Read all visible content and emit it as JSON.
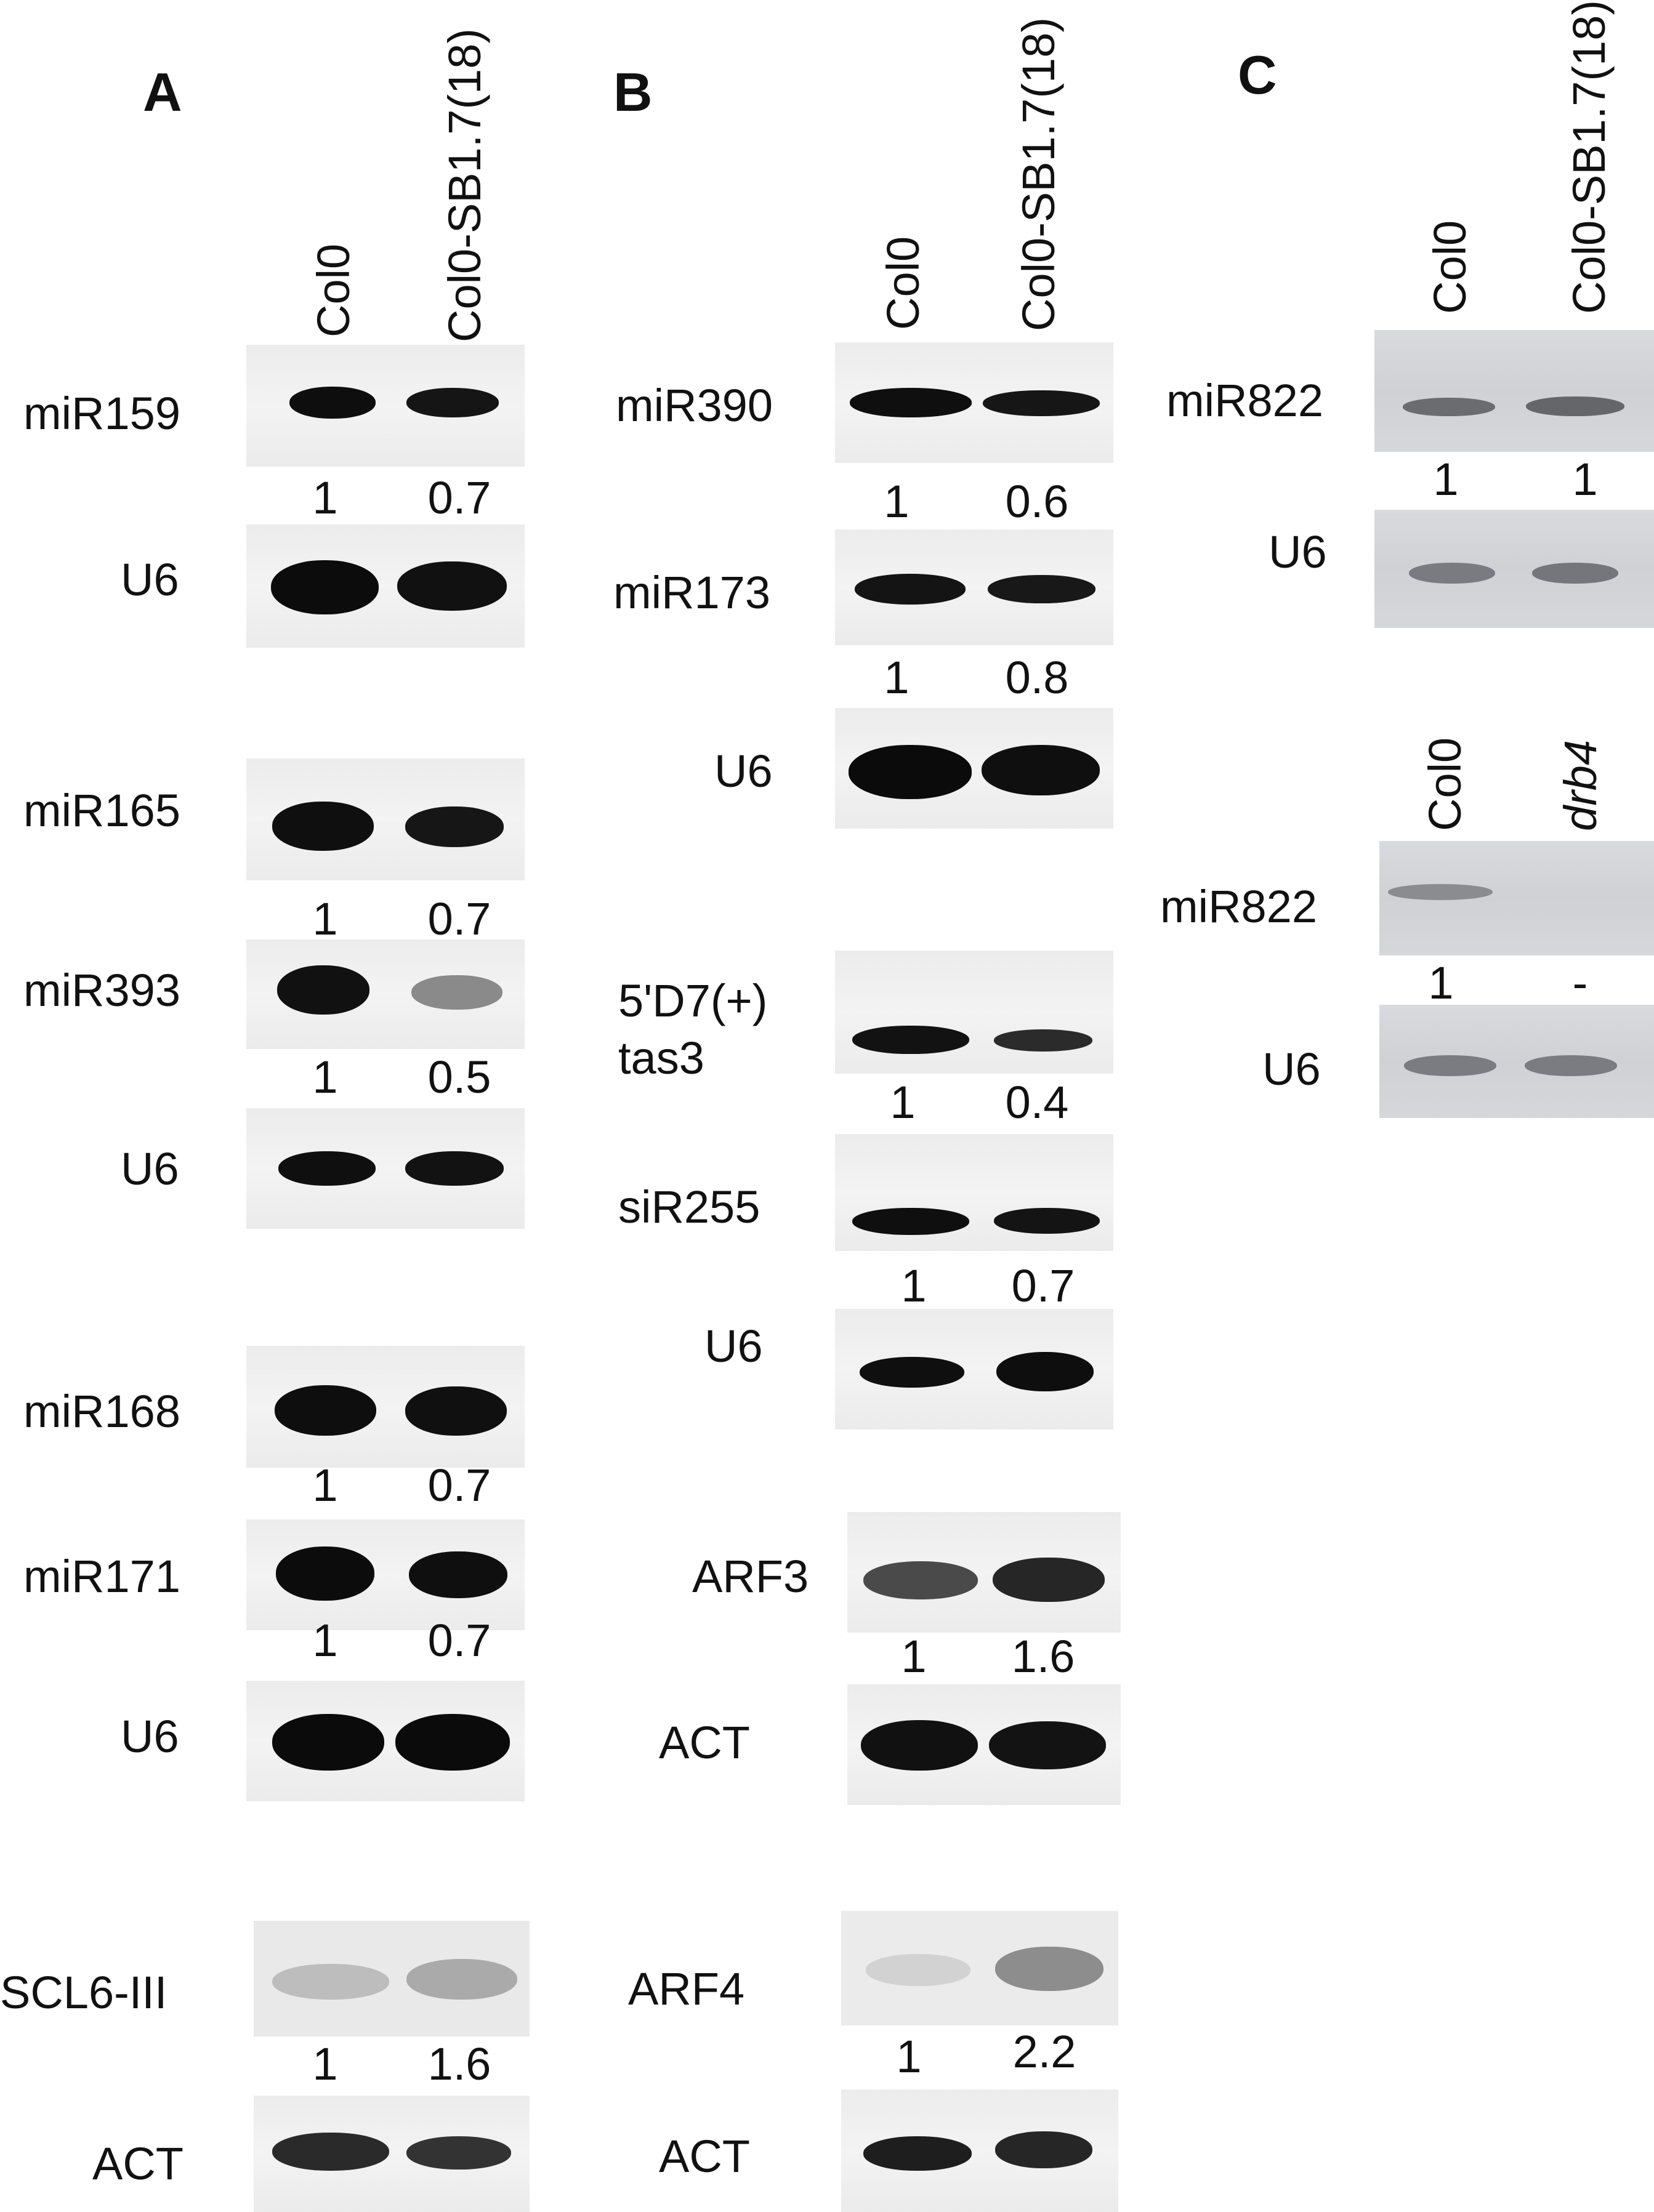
{
  "panels": {
    "A": {
      "letter": "A",
      "lanes": [
        "Col0",
        "Col0-SB1.7(18)"
      ],
      "rows": {
        "miR159": "miR159",
        "U6_1": "U6",
        "miR165": "miR165",
        "miR393": "miR393",
        "U6_2": "U6",
        "miR168": "miR168",
        "miR171": "miR171",
        "U6_3": "U6",
        "SCL6": "SCL6-III",
        "ACT": "ACT"
      },
      "quant": {
        "miR159": [
          "1",
          "0.7"
        ],
        "miR165": [
          "1",
          "0.7"
        ],
        "miR393": [
          "1",
          "0.5"
        ],
        "miR168": [
          "1",
          "0.7"
        ],
        "miR171": [
          "1",
          "0.7"
        ],
        "SCL6": [
          "1",
          "1.6"
        ]
      }
    },
    "B": {
      "letter": "B",
      "lanes": [
        "Col0",
        "Col0-SB1.7(18)"
      ],
      "rows": {
        "miR390": "miR390",
        "miR173": "miR173",
        "U6_1": "U6",
        "tas3": "5'D7(+)\ntas3",
        "siR255": "siR255",
        "U6_2": "U6",
        "ARF3": "ARF3",
        "ACT_1": "ACT",
        "ARF4": "ARF4",
        "ACT_2": "ACT"
      },
      "quant": {
        "miR390": [
          "1",
          "0.6"
        ],
        "miR173": [
          "1",
          "0.8"
        ],
        "tas3": [
          "1",
          "0.4"
        ],
        "siR255": [
          "1",
          "0.7"
        ],
        "ARF3": [
          "1",
          "1.6"
        ],
        "ARF4": [
          "1",
          "2.2"
        ]
      }
    },
    "C": {
      "letter": "C",
      "lanes_top": [
        "Col0",
        "Col0-SB1.7(18)"
      ],
      "lanes_bottom": [
        "Col0",
        "drb4"
      ],
      "rows": {
        "miR822_1": "miR822",
        "U6_1": "U6",
        "miR822_2": "miR822",
        "U6_2": "U6"
      },
      "quant": {
        "miR822_1": [
          "1",
          "1"
        ],
        "miR822_2": [
          "1",
          "-"
        ]
      }
    }
  },
  "colors": {
    "band": "#111111",
    "blot_bg": "#f0f0f0",
    "grey_blot_bg": "#d3d5d9"
  }
}
